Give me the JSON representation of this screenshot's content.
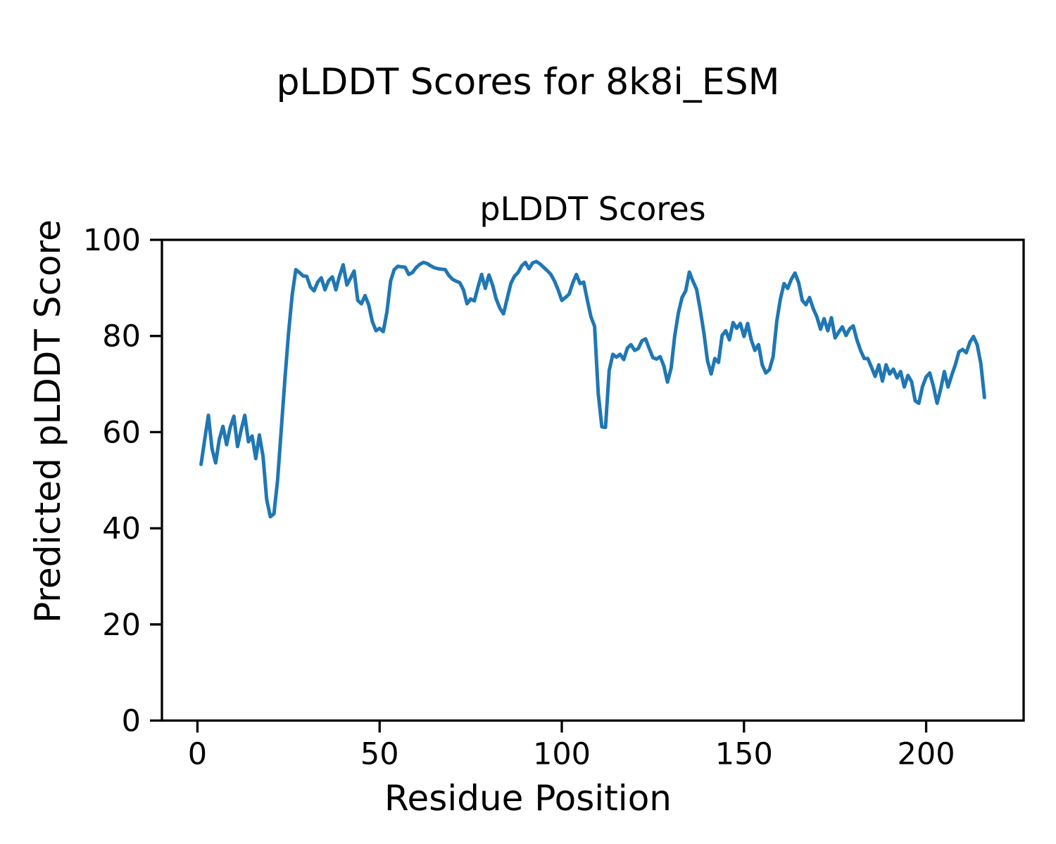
{
  "chart_data": {
    "type": "line",
    "figure_title": "pLDDT Scores for 8k8i_ESM",
    "axes_title": "pLDDT Scores",
    "xlabel": "Residue Position",
    "ylabel": "Predicted pLDDT Score",
    "xlim": [
      -9.75,
      226.75
    ],
    "ylim": [
      0,
      100
    ],
    "xticks": [
      0,
      50,
      100,
      150,
      200
    ],
    "yticks": [
      0,
      20,
      40,
      60,
      80,
      100
    ],
    "grid": false,
    "legend": "none",
    "line_color": "#1f77b4",
    "x_start": 1,
    "x_step": 1,
    "values": [
      53.3,
      58.5,
      63.5,
      56.5,
      53.6,
      58.5,
      61.2,
      57.4,
      61.0,
      63.3,
      57.0,
      60.5,
      63.5,
      58.0,
      59.2,
      54.5,
      59.4,
      55.0,
      46.0,
      42.4,
      43.0,
      50.0,
      60.5,
      71.0,
      80.5,
      88.5,
      93.8,
      93.2,
      92.5,
      92.4,
      90.2,
      89.4,
      91.2,
      92.1,
      89.6,
      91.5,
      92.3,
      89.6,
      92.5,
      94.8,
      90.6,
      92.0,
      93.5,
      87.4,
      86.7,
      88.4,
      86.5,
      83.0,
      81.1,
      81.6,
      80.9,
      85.0,
      91.4,
      93.8,
      94.5,
      94.4,
      94.3,
      92.8,
      93.2,
      94.2,
      94.9,
      95.3,
      95.1,
      94.6,
      94.2,
      94.0,
      93.9,
      93.8,
      92.6,
      91.8,
      91.4,
      91.1,
      89.6,
      86.7,
      87.7,
      87.3,
      90.2,
      92.8,
      89.9,
      92.7,
      90.6,
      87.7,
      85.8,
      84.6,
      87.8,
      90.9,
      92.4,
      93.2,
      94.6,
      95.3,
      94.0,
      95.2,
      95.5,
      95.0,
      94.3,
      93.6,
      92.8,
      91.4,
      89.6,
      87.4,
      88.0,
      88.7,
      91.0,
      92.8,
      90.9,
      91.2,
      87.5,
      84.0,
      82.0,
      68.0,
      61.1,
      61.0,
      72.8,
      76.2,
      75.6,
      76.2,
      75.1,
      77.5,
      78.2,
      77.0,
      77.4,
      79.0,
      79.4,
      77.4,
      75.5,
      75.2,
      75.7,
      73.8,
      70.4,
      73.3,
      80.0,
      84.8,
      88.0,
      89.4,
      93.3,
      91.4,
      89.7,
      85.4,
      80.6,
      74.8,
      72.1,
      75.3,
      74.5,
      80.1,
      81.1,
      79.2,
      82.8,
      81.6,
      82.6,
      79.9,
      82.6,
      79.2,
      77.0,
      78.2,
      74.0,
      72.3,
      73.0,
      75.7,
      83.1,
      87.7,
      90.9,
      89.9,
      91.8,
      93.1,
      91.1,
      87.4,
      86.5,
      88.0,
      85.7,
      84.0,
      81.4,
      83.6,
      81.1,
      83.8,
      79.6,
      80.8,
      81.9,
      80.1,
      81.5,
      82.1,
      79.2,
      77.0,
      75.3,
      75.3,
      73.5,
      71.6,
      74.0,
      70.6,
      74.0,
      72.1,
      73.1,
      71.3,
      72.6,
      69.4,
      71.8,
      70.5,
      66.5,
      66.0,
      69.5,
      71.5,
      72.3,
      69.5,
      66.0,
      69.0,
      72.6,
      69.4,
      71.8,
      74.0,
      76.7,
      77.2,
      76.5,
      78.7,
      79.9,
      78.2,
      74.3,
      67.2
    ]
  }
}
